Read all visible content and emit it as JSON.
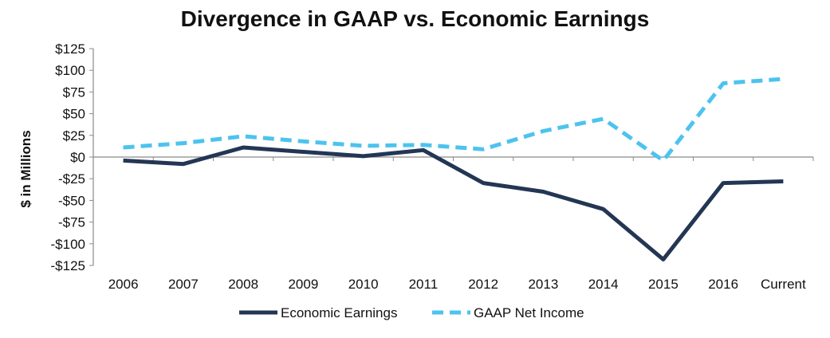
{
  "chart_data": {
    "type": "line",
    "title": "Divergence in GAAP vs. Economic Earnings",
    "ylabel": "$ in Millions",
    "xlabel": "",
    "categories": [
      "2006",
      "2007",
      "2008",
      "2009",
      "2010",
      "2011",
      "2012",
      "2013",
      "2014",
      "2015",
      "2016",
      "Current"
    ],
    "ylim": [
      -125,
      125
    ],
    "yticks": [
      -125,
      -100,
      -75,
      -50,
      -25,
      0,
      25,
      50,
      75,
      100,
      125
    ],
    "ytick_labels": [
      "-$125",
      "-$100",
      "-$75",
      "-$50",
      "-$25",
      "$0",
      "$25",
      "$50",
      "$75",
      "$100",
      "$125"
    ],
    "grid": false,
    "legend_position": "bottom",
    "series": [
      {
        "name": "Economic Earnings",
        "color": "#233654",
        "style": "solid",
        "values": [
          -4,
          -8,
          11,
          6,
          1,
          8,
          -30,
          -40,
          -60,
          -118,
          -30,
          -28
        ]
      },
      {
        "name": "GAAP Net Income",
        "color": "#4dc3ee",
        "style": "dashed",
        "values": [
          11,
          16,
          24,
          18,
          13,
          14,
          9,
          30,
          44,
          -4,
          85,
          90
        ]
      }
    ]
  }
}
